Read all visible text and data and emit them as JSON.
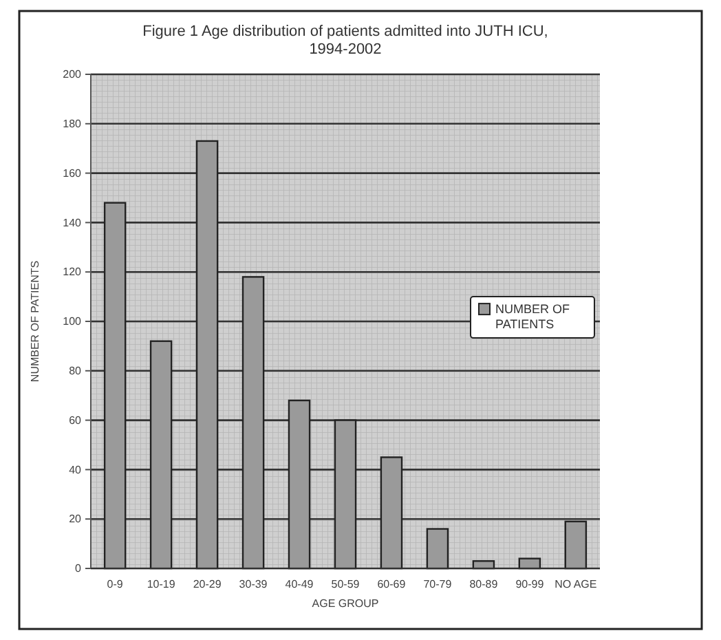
{
  "chart_data": {
    "type": "bar",
    "title": "Figure 1  Age distribution of patients admitted into JUTH ICU,\n1994-2002",
    "xlabel": "AGE GROUP",
    "ylabel": "NUMBER OF PATIENTS",
    "categories": [
      "0-9",
      "10-19",
      "20-29",
      "30-39",
      "40-49",
      "50-59",
      "60-69",
      "70-79",
      "80-89",
      "90-99",
      "NO AGE"
    ],
    "series": [
      {
        "name": "NUMBER OF PATIENTS",
        "color": "#9a9a9a",
        "values": [
          148,
          92,
          173,
          118,
          68,
          60,
          45,
          16,
          3,
          4,
          19
        ]
      }
    ],
    "ylim": [
      0,
      200
    ],
    "yticks": [
      0,
      20,
      40,
      60,
      80,
      100,
      120,
      140,
      160,
      180,
      200
    ],
    "grid": "y",
    "legend": "right"
  }
}
